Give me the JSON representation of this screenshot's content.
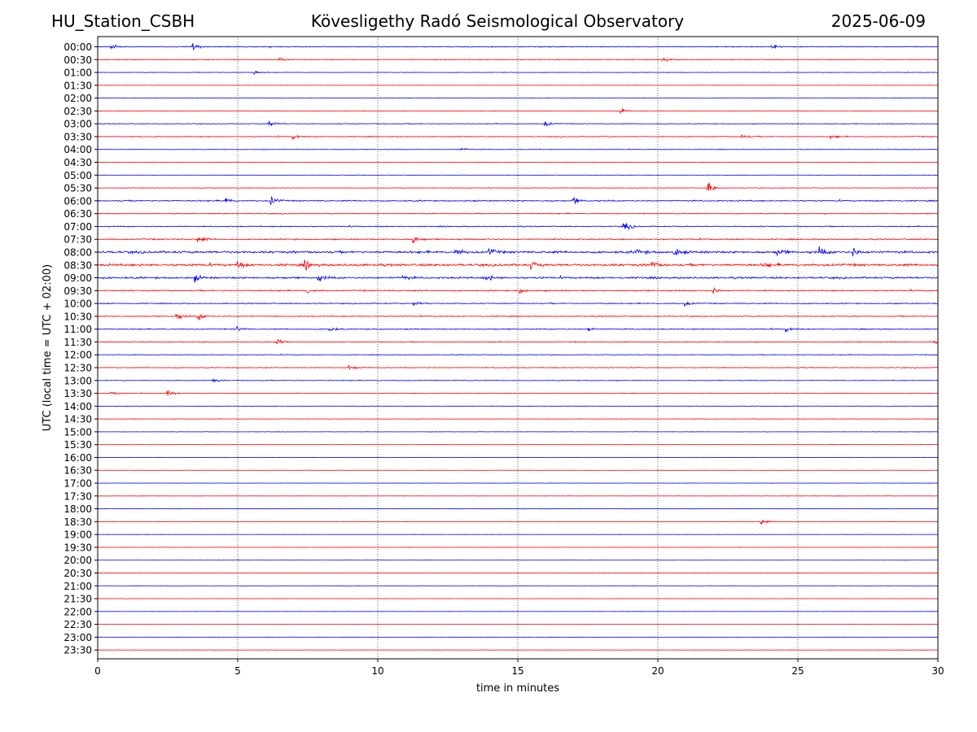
{
  "header": {
    "station": "HU_Station_CSBH",
    "observatory": "Kövesligethy Radó Seismological Observatory",
    "date": "2025-06-09"
  },
  "chart_data": {
    "type": "line",
    "chart_kind": "helicorder",
    "xlabel": "time in minutes",
    "ylabel": "UTC (local time = UTC + 02:00)",
    "xlim": [
      0,
      30
    ],
    "x_ticks": [
      "0",
      "5",
      "10",
      "15",
      "20",
      "25",
      "30"
    ],
    "vertical_gridlines_at": [
      5,
      10,
      15,
      20,
      25
    ],
    "grid": "vertical dotted",
    "row_labels": [
      "00:00",
      "00:30",
      "01:00",
      "01:30",
      "02:00",
      "02:30",
      "03:00",
      "03:30",
      "04:00",
      "04:30",
      "05:00",
      "05:30",
      "06:00",
      "06:30",
      "07:00",
      "07:30",
      "08:00",
      "08:30",
      "09:00",
      "09:30",
      "10:00",
      "10:30",
      "11:00",
      "11:30",
      "12:00",
      "12:30",
      "13:00",
      "13:30",
      "14:00",
      "14:30",
      "15:00",
      "15:30",
      "16:00",
      "16:30",
      "17:00",
      "17:30",
      "18:00",
      "18:30",
      "19:00",
      "19:30",
      "20:00",
      "20:30",
      "21:00",
      "21:30",
      "22:00",
      "22:30",
      "23:00",
      "23:30"
    ],
    "trace_colors": [
      "#0000ff",
      "#ff0000"
    ],
    "noise_level_per_row": [
      0.22,
      0.18,
      0.12,
      0.08,
      0.1,
      0.1,
      0.18,
      0.22,
      0.15,
      0.08,
      0.08,
      0.12,
      0.3,
      0.22,
      0.25,
      0.3,
      0.55,
      0.55,
      0.45,
      0.3,
      0.25,
      0.25,
      0.25,
      0.22,
      0.18,
      0.18,
      0.18,
      0.15,
      0.12,
      0.1,
      0.08,
      0.08,
      0.07,
      0.07,
      0.07,
      0.07,
      0.07,
      0.07,
      0.07,
      0.07,
      0.07,
      0.07,
      0.07,
      0.07,
      0.07,
      0.07,
      0.07,
      0.07
    ],
    "events": [
      {
        "row": 0,
        "minute": 0.5,
        "amp": 0.35
      },
      {
        "row": 0,
        "minute": 3.4,
        "amp": 0.5
      },
      {
        "row": 0,
        "minute": 24.1,
        "amp": 0.3
      },
      {
        "row": 1,
        "minute": 6.5,
        "amp": 0.3
      },
      {
        "row": 1,
        "minute": 20.2,
        "amp": 0.3
      },
      {
        "row": 2,
        "minute": 5.6,
        "amp": 0.25
      },
      {
        "row": 5,
        "minute": 18.7,
        "amp": 0.35
      },
      {
        "row": 6,
        "minute": 6.1,
        "amp": 0.6
      },
      {
        "row": 6,
        "minute": 16.0,
        "amp": 0.45
      },
      {
        "row": 7,
        "minute": 7.0,
        "amp": 0.35
      },
      {
        "row": 7,
        "minute": 23.0,
        "amp": 0.35
      },
      {
        "row": 7,
        "minute": 26.2,
        "amp": 0.35
      },
      {
        "row": 8,
        "minute": 13.0,
        "amp": 0.3
      },
      {
        "row": 11,
        "minute": 21.8,
        "amp": 0.9
      },
      {
        "row": 12,
        "minute": 4.6,
        "amp": 0.45
      },
      {
        "row": 12,
        "minute": 6.2,
        "amp": 0.65
      },
      {
        "row": 12,
        "minute": 17.0,
        "amp": 0.5
      },
      {
        "row": 14,
        "minute": 18.8,
        "amp": 0.8
      },
      {
        "row": 15,
        "minute": 3.6,
        "amp": 0.5
      },
      {
        "row": 15,
        "minute": 11.3,
        "amp": 0.55
      },
      {
        "row": 16,
        "minute": 12.8,
        "amp": 0.5
      },
      {
        "row": 16,
        "minute": 14.0,
        "amp": 0.5
      },
      {
        "row": 16,
        "minute": 19.3,
        "amp": 0.55
      },
      {
        "row": 16,
        "minute": 20.6,
        "amp": 0.55
      },
      {
        "row": 16,
        "minute": 24.3,
        "amp": 0.5
      },
      {
        "row": 16,
        "minute": 25.8,
        "amp": 0.55
      },
      {
        "row": 16,
        "minute": 27.0,
        "amp": 0.55
      },
      {
        "row": 17,
        "minute": 5.0,
        "amp": 0.45
      },
      {
        "row": 17,
        "minute": 7.4,
        "amp": 0.6
      },
      {
        "row": 17,
        "minute": 15.5,
        "amp": 0.5
      },
      {
        "row": 17,
        "minute": 19.8,
        "amp": 0.45
      },
      {
        "row": 17,
        "minute": 23.8,
        "amp": 0.5
      },
      {
        "row": 18,
        "minute": 3.5,
        "amp": 0.4
      },
      {
        "row": 18,
        "minute": 7.9,
        "amp": 0.45
      },
      {
        "row": 18,
        "minute": 10.9,
        "amp": 0.45
      },
      {
        "row": 18,
        "minute": 13.9,
        "amp": 0.5
      },
      {
        "row": 19,
        "minute": 7.5,
        "amp": 0.35
      },
      {
        "row": 19,
        "minute": 15.1,
        "amp": 0.35
      },
      {
        "row": 19,
        "minute": 22.0,
        "amp": 0.4
      },
      {
        "row": 20,
        "minute": 11.3,
        "amp": 0.35
      },
      {
        "row": 20,
        "minute": 21.0,
        "amp": 0.35
      },
      {
        "row": 21,
        "minute": 2.8,
        "amp": 0.55
      },
      {
        "row": 21,
        "minute": 3.6,
        "amp": 0.55
      },
      {
        "row": 22,
        "minute": 5.0,
        "amp": 0.4
      },
      {
        "row": 22,
        "minute": 8.3,
        "amp": 0.4
      },
      {
        "row": 22,
        "minute": 17.5,
        "amp": 0.4
      },
      {
        "row": 22,
        "minute": 24.6,
        "amp": 0.35
      },
      {
        "row": 23,
        "minute": 6.4,
        "amp": 0.5
      },
      {
        "row": 23,
        "minute": 29.9,
        "amp": 0.35
      },
      {
        "row": 25,
        "minute": 9.0,
        "amp": 0.4
      },
      {
        "row": 26,
        "minute": 4.1,
        "amp": 0.35
      },
      {
        "row": 27,
        "minute": 2.5,
        "amp": 0.45
      },
      {
        "row": 27,
        "minute": 0.5,
        "amp": 0.3
      },
      {
        "row": 37,
        "minute": 23.7,
        "amp": 0.5
      }
    ]
  }
}
